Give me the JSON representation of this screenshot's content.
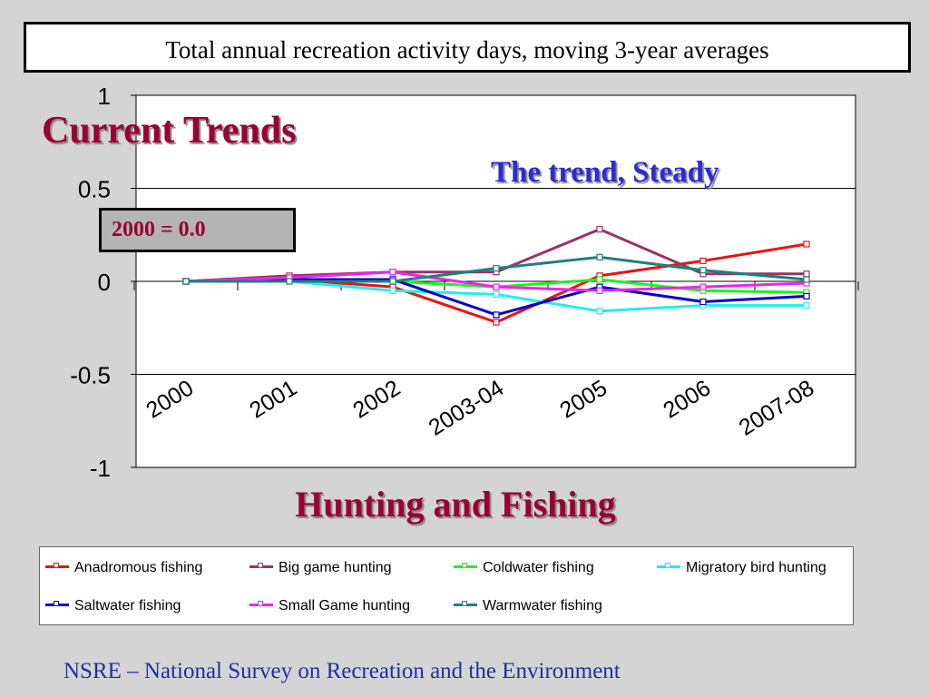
{
  "slide": {
    "heading": "Current Trends",
    "trend_note": "The trend, Steady",
    "baseline_note": "2000 = 0.0",
    "subject": "Hunting and Fishing",
    "footer": "NSRE – National Survey on Recreation and the Environment"
  },
  "chart_data": {
    "type": "line",
    "title": "Total annual recreation activity days, moving 3-year averages",
    "xlabel": "",
    "ylabel": "",
    "ylim": [
      -1,
      1
    ],
    "yticks": [
      "1",
      "0.5",
      "0",
      "-0.5",
      "-1"
    ],
    "ytick_values": [
      1,
      0.5,
      0,
      -0.5,
      -1
    ],
    "categories": [
      "2000",
      "2001",
      "2002",
      "2003-04",
      "2005",
      "2006",
      "2007-08"
    ],
    "grid": true,
    "legend_position": "bottom",
    "series": [
      {
        "name": "Anadromous fishing",
        "color": "#ee1111",
        "values": [
          0,
          0.01,
          -0.03,
          -0.22,
          0.03,
          0.11,
          0.2
        ]
      },
      {
        "name": "Big game hunting",
        "color": "#993366",
        "values": [
          0,
          0.03,
          0.05,
          0.05,
          0.28,
          0.04,
          0.04
        ]
      },
      {
        "name": "Coldwater fishing",
        "color": "#22ee22",
        "values": [
          0,
          0.01,
          0.0,
          -0.03,
          0.01,
          -0.05,
          -0.06
        ]
      },
      {
        "name": "Migratory bird hunting",
        "color": "#22eeee",
        "values": [
          0,
          0.0,
          -0.05,
          -0.07,
          -0.16,
          -0.13,
          -0.13
        ]
      },
      {
        "name": "Saltwater fishing",
        "color": "#0000cc",
        "values": [
          0,
          0.01,
          0.01,
          -0.18,
          -0.03,
          -0.11,
          -0.08
        ]
      },
      {
        "name": "Small Game hunting",
        "color": "#ee22ee",
        "values": [
          0,
          0.02,
          0.05,
          -0.03,
          -0.05,
          -0.03,
          -0.01
        ]
      },
      {
        "name": "Warmwater fishing",
        "color": "#1f7f7f",
        "values": [
          0,
          0.0,
          0.0,
          0.07,
          0.13,
          0.06,
          0.01
        ]
      }
    ]
  }
}
